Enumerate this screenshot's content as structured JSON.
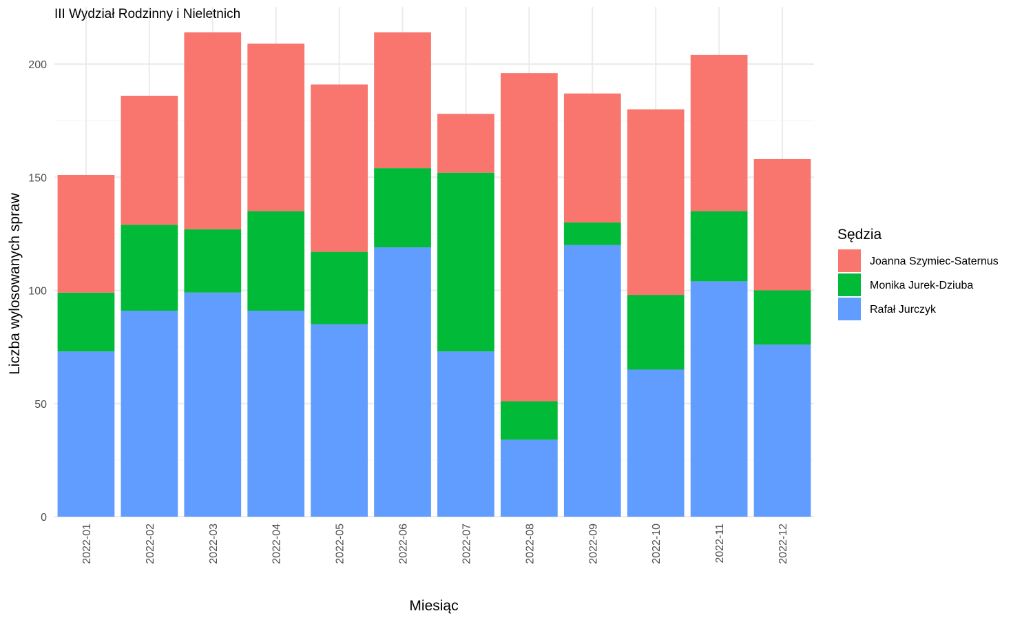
{
  "chart_data": {
    "type": "bar",
    "stacked": true,
    "title": "III Wydział Rodzinny i Nieletnich",
    "xlabel": "Miesiąc",
    "ylabel": "Liczba wylosowanych spraw",
    "ylim": [
      0,
      225
    ],
    "yticks": [
      0,
      50,
      100,
      150,
      200
    ],
    "grid": true,
    "legend": {
      "title": "Sędzia",
      "position": "right"
    },
    "categories": [
      "2022-01",
      "2022-02",
      "2022-03",
      "2022-04",
      "2022-05",
      "2022-06",
      "2022-07",
      "2022-08",
      "2022-09",
      "2022-10",
      "2022-11",
      "2022-12"
    ],
    "series": [
      {
        "name": "Rafał Jurczyk",
        "color": "#619CFF",
        "values": [
          73,
          91,
          99,
          91,
          85,
          119,
          73,
          34,
          120,
          65,
          104,
          76
        ]
      },
      {
        "name": "Monika Jurek-Dziuba",
        "color": "#00BA38",
        "values": [
          26,
          38,
          28,
          44,
          32,
          35,
          79,
          17,
          10,
          33,
          31,
          24
        ]
      },
      {
        "name": "Joanna Szymiec-Saternus",
        "color": "#F8766D",
        "values": [
          52,
          57,
          87,
          74,
          74,
          60,
          26,
          145,
          57,
          82,
          69,
          58
        ]
      }
    ],
    "legend_order": [
      "Joanna Szymiec-Saternus",
      "Monika Jurek-Dziuba",
      "Rafał Jurczyk"
    ]
  }
}
